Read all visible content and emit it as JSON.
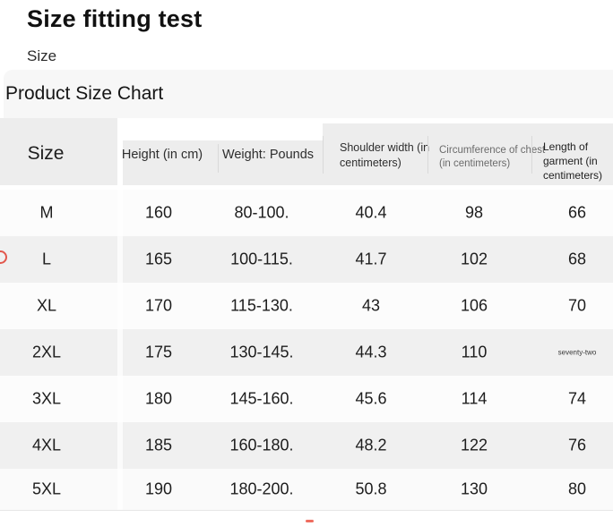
{
  "page": {
    "title": "Size fitting test",
    "subtitle": "Size",
    "section_title": "Product Size Chart"
  },
  "table": {
    "columns": [
      {
        "label": "Size"
      },
      {
        "label": "Height (in cm)"
      },
      {
        "label": "Weight: Pounds"
      },
      {
        "label": "Shoulder width (in centimeters)"
      },
      {
        "label": "Circumference of chest (in centimeters)"
      },
      {
        "label": "Length of garment (in centimeters)"
      }
    ],
    "rows": [
      {
        "size": "M",
        "height": "160",
        "weight": "80-100.",
        "shoulder": "40.4",
        "chest": "98",
        "length": "66"
      },
      {
        "size": "L",
        "height": "165",
        "weight": "100-115.",
        "shoulder": "41.7",
        "chest": "102",
        "length": "68"
      },
      {
        "size": "XL",
        "height": "170",
        "weight": "115-130.",
        "shoulder": "43",
        "chest": "106",
        "length": "70"
      },
      {
        "size": "2XL",
        "height": "175",
        "weight": "130-145.",
        "shoulder": "44.3",
        "chest": "110",
        "length": "seventy-two"
      },
      {
        "size": "3XL",
        "height": "180",
        "weight": "145-160.",
        "shoulder": "45.6",
        "chest": "114",
        "length": "74"
      },
      {
        "size": "4XL",
        "height": "185",
        "weight": "160-180.",
        "shoulder": "48.2",
        "chest": "122",
        "length": "76"
      },
      {
        "size": "5XL",
        "height": "190",
        "weight": "180-200.",
        "shoulder": "50.8",
        "chest": "130",
        "length": "80"
      }
    ]
  },
  "artifacts": {
    "left_marker_icon": "red-cursor-ring",
    "bottom_marker_icon": "red-dash"
  },
  "colors": {
    "band_bg": "#f7f7f7",
    "header_bg": "#ededed",
    "row_alt_bg": "#f0f0f0",
    "artifact_red": "#e2574c"
  }
}
